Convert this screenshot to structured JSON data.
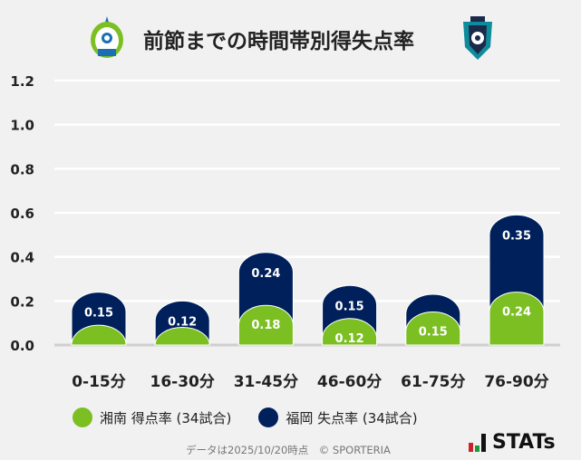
{
  "title": "前節までの時間帯別得失点率",
  "chart_data": {
    "type": "bar",
    "stacked": true,
    "categories": [
      "0-15分",
      "16-30分",
      "31-45分",
      "46-60分",
      "61-75分",
      "76-90分"
    ],
    "series": [
      {
        "name": "湘南 得点率 (34試合)",
        "color": "#7bbf23",
        "values": [
          0.09,
          0.08,
          0.18,
          0.12,
          0.15,
          0.24
        ],
        "labels": [
          "",
          "",
          "0.18",
          "0.12",
          "0.15",
          "0.24"
        ]
      },
      {
        "name": "福岡 失点率 (34試合)",
        "color": "#00205b",
        "values": [
          0.15,
          0.12,
          0.24,
          0.15,
          0.08,
          0.35
        ],
        "labels": [
          "0.15",
          "0.12",
          "0.24",
          "0.15",
          "",
          "0.35"
        ]
      }
    ],
    "yticks": [
      "0.0",
      "0.2",
      "0.4",
      "0.6",
      "0.8",
      "1.0",
      "1.2"
    ],
    "ylim": [
      0,
      1.2
    ],
    "grid": true,
    "legend": "bottom"
  },
  "legend": {
    "home": "湘南 得点率 (34試合)",
    "away": "福岡 失点率 (34試合)"
  },
  "footer": "データは2025/10/20時点　© SPORTERIA",
  "brand": {
    "name": "STATs",
    "logo_text": ""
  },
  "logos": {
    "home": "shonan-bellmare-crest",
    "away": "avispa-fukuoka-crest"
  }
}
